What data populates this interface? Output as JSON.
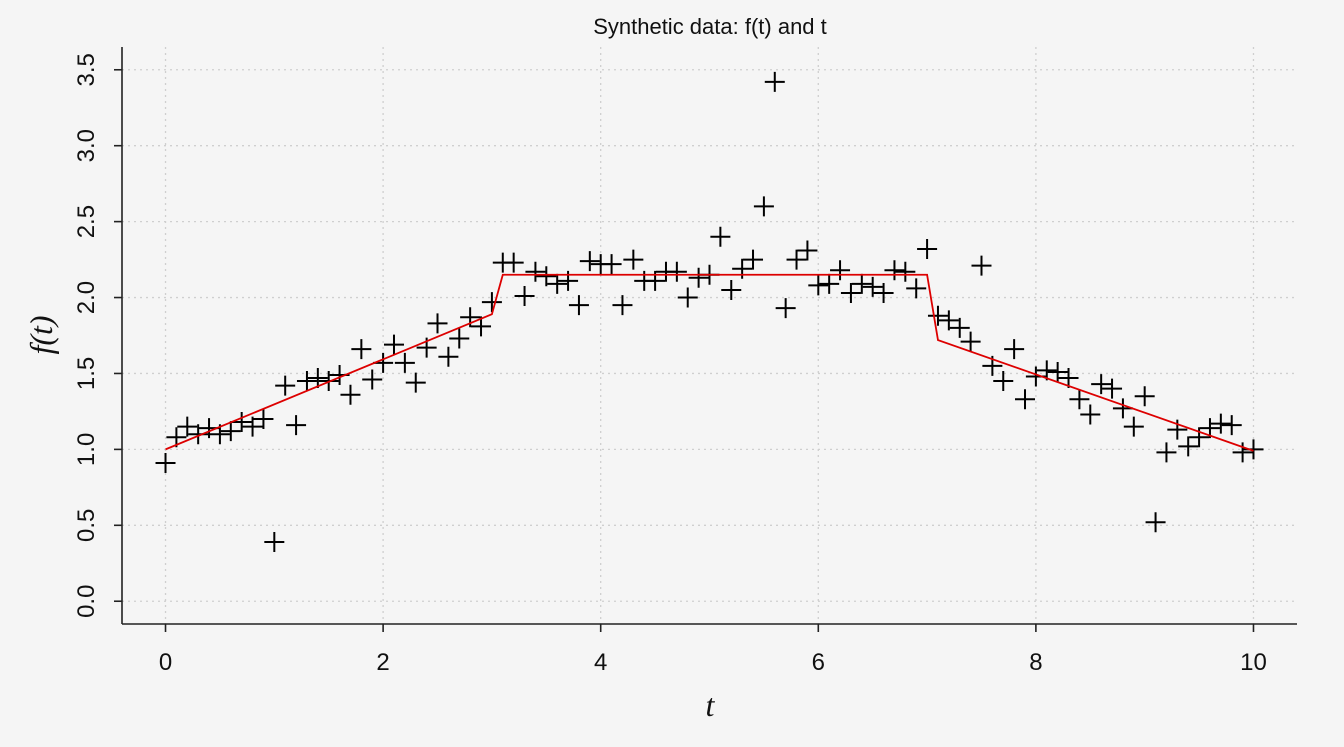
{
  "chart_data": {
    "type": "scatter",
    "title": "Synthetic data: f(t) and t",
    "xlabel": "t",
    "ylabel": "f(t)",
    "xlim": [
      -0.4,
      10.4
    ],
    "ylim": [
      -0.15,
      3.65
    ],
    "xticks": [
      0,
      2,
      4,
      6,
      8,
      10
    ],
    "xtick_labels": [
      "0",
      "2",
      "4",
      "6",
      "8",
      "10"
    ],
    "yticks": [
      0.0,
      0.5,
      1.0,
      1.5,
      2.0,
      2.5,
      3.0,
      3.5
    ],
    "ytick_labels": [
      "0.0",
      "0.5",
      "1.0",
      "1.5",
      "2.0",
      "2.5",
      "3.0",
      "3.5"
    ],
    "grid": true,
    "colors": {
      "points": "#000000",
      "fit": "#dd0000",
      "background": "#f5f5f5"
    },
    "series": [
      {
        "type": "scatter",
        "marker": "plus",
        "x": [
          0.0,
          0.1,
          0.2,
          0.3,
          0.4,
          0.5,
          0.6,
          0.7,
          0.8,
          0.9,
          1.0,
          1.1,
          1.2,
          1.3,
          1.4,
          1.5,
          1.6,
          1.7,
          1.8,
          1.9,
          2.0,
          2.1,
          2.2,
          2.3,
          2.4,
          2.5,
          2.6,
          2.7,
          2.8,
          2.9,
          3.0,
          3.1,
          3.2,
          3.3,
          3.4,
          3.5,
          3.6,
          3.7,
          3.8,
          3.9,
          4.0,
          4.1,
          4.2,
          4.3,
          4.4,
          4.5,
          4.6,
          4.7,
          4.8,
          4.9,
          5.0,
          5.1,
          5.2,
          5.3,
          5.4,
          5.5,
          5.6,
          5.7,
          5.8,
          5.9,
          6.0,
          6.1,
          6.2,
          6.3,
          6.4,
          6.5,
          6.6,
          6.7,
          6.8,
          6.9,
          7.0,
          7.1,
          7.2,
          7.3,
          7.4,
          7.5,
          7.6,
          7.7,
          7.8,
          7.9,
          8.0,
          8.1,
          8.2,
          8.3,
          8.4,
          8.5,
          8.6,
          8.7,
          8.8,
          8.9,
          9.0,
          9.1,
          9.2,
          9.3,
          9.4,
          9.5,
          9.6,
          9.7,
          9.8,
          9.9,
          10.0
        ],
        "y": [
          0.91,
          1.08,
          1.15,
          1.1,
          1.14,
          1.1,
          1.12,
          1.18,
          1.15,
          1.2,
          0.39,
          1.42,
          1.16,
          1.45,
          1.47,
          1.45,
          1.49,
          1.36,
          1.66,
          1.46,
          1.57,
          1.69,
          1.57,
          1.44,
          1.67,
          1.83,
          1.61,
          1.73,
          1.87,
          1.81,
          1.97,
          2.23,
          2.23,
          2.01,
          2.17,
          2.14,
          2.09,
          2.11,
          1.95,
          2.24,
          2.22,
          2.22,
          1.95,
          2.25,
          2.11,
          2.11,
          2.17,
          2.17,
          2.0,
          2.13,
          2.15,
          2.4,
          2.05,
          2.19,
          2.25,
          2.6,
          3.42,
          1.93,
          2.25,
          2.31,
          2.08,
          2.09,
          2.18,
          2.03,
          2.09,
          2.07,
          2.03,
          2.18,
          2.17,
          2.06,
          2.32,
          1.88,
          1.85,
          1.8,
          1.71,
          2.21,
          1.55,
          1.45,
          1.66,
          1.33,
          1.48,
          1.52,
          1.51,
          1.47,
          1.33,
          1.23,
          1.43,
          1.4,
          1.27,
          1.15,
          1.35,
          0.52,
          0.98,
          1.13,
          1.02,
          1.08,
          1.14,
          1.17,
          1.16,
          0.98,
          1.0
        ]
      },
      {
        "type": "line",
        "x": [
          0.0,
          3.0,
          3.1,
          7.0,
          7.1,
          10.0
        ],
        "y": [
          1.0,
          1.89,
          2.15,
          2.15,
          1.72,
          0.99
        ]
      }
    ]
  }
}
